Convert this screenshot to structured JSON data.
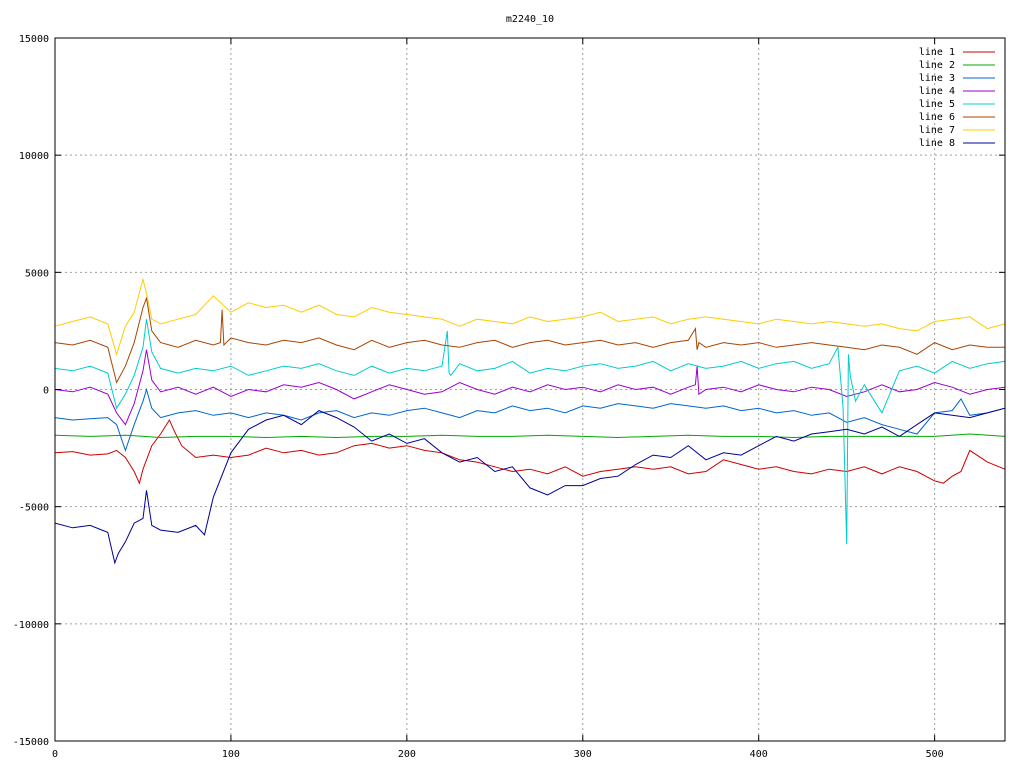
{
  "chart_data": {
    "type": "line",
    "title": "m2240_10",
    "xlim": [
      0,
      540
    ],
    "ylim": [
      -15000,
      15000
    ],
    "x_ticks": [
      0,
      100,
      200,
      300,
      400,
      500
    ],
    "y_ticks": [
      -15000,
      -10000,
      -5000,
      0,
      5000,
      10000,
      15000
    ],
    "grid": true,
    "legend_position": "top-right",
    "series": [
      {
        "name": "line 1",
        "color": "#cc0000",
        "x": [
          0,
          10,
          20,
          30,
          35,
          40,
          45,
          48,
          50,
          55,
          60,
          65,
          68,
          72,
          80,
          90,
          100,
          110,
          120,
          130,
          140,
          150,
          160,
          170,
          180,
          190,
          200,
          210,
          220,
          230,
          240,
          250,
          260,
          270,
          280,
          290,
          300,
          310,
          320,
          330,
          340,
          350,
          360,
          370,
          380,
          390,
          400,
          410,
          420,
          430,
          440,
          450,
          460,
          470,
          480,
          490,
          500,
          505,
          510,
          515,
          520,
          530,
          540
        ],
        "y": [
          -2700,
          -2650,
          -2800,
          -2750,
          -2600,
          -2900,
          -3500,
          -4000,
          -3400,
          -2400,
          -1900,
          -1300,
          -1800,
          -2400,
          -2900,
          -2800,
          -2900,
          -2800,
          -2500,
          -2700,
          -2600,
          -2800,
          -2700,
          -2400,
          -2300,
          -2500,
          -2400,
          -2600,
          -2700,
          -3000,
          -3100,
          -3300,
          -3500,
          -3400,
          -3600,
          -3300,
          -3700,
          -3500,
          -3400,
          -3300,
          -3400,
          -3300,
          -3600,
          -3500,
          -3000,
          -3200,
          -3400,
          -3300,
          -3500,
          -3600,
          -3400,
          -3500,
          -3300,
          -3600,
          -3300,
          -3500,
          -3900,
          -4000,
          -3700,
          -3500,
          -2600,
          -3100,
          -3400
        ]
      },
      {
        "name": "line 2",
        "color": "#00aa00",
        "x": [
          0,
          20,
          40,
          60,
          80,
          100,
          120,
          140,
          160,
          180,
          200,
          220,
          240,
          260,
          280,
          300,
          320,
          340,
          360,
          380,
          400,
          420,
          440,
          460,
          480,
          500,
          520,
          540
        ],
        "y": [
          -1950,
          -2000,
          -1950,
          -2050,
          -2000,
          -2000,
          -2050,
          -2000,
          -2050,
          -2000,
          -2000,
          -1950,
          -2000,
          -2000,
          -1950,
          -2000,
          -2050,
          -2000,
          -1950,
          -2000,
          -2000,
          -2050,
          -2000,
          -2000,
          -2000,
          -2000,
          -1900,
          -2000
        ]
      },
      {
        "name": "line 3",
        "color": "#0066cc",
        "x": [
          0,
          10,
          20,
          30,
          35,
          40,
          45,
          50,
          52,
          55,
          60,
          70,
          80,
          90,
          100,
          110,
          120,
          130,
          140,
          150,
          160,
          170,
          180,
          190,
          200,
          210,
          220,
          230,
          240,
          250,
          260,
          270,
          280,
          290,
          300,
          310,
          320,
          330,
          340,
          350,
          360,
          370,
          380,
          390,
          400,
          410,
          420,
          430,
          440,
          450,
          460,
          470,
          480,
          490,
          500,
          510,
          515,
          520,
          530,
          540
        ],
        "y": [
          -1200,
          -1300,
          -1250,
          -1200,
          -1500,
          -2600,
          -1500,
          -500,
          0,
          -800,
          -1200,
          -1000,
          -900,
          -1100,
          -1000,
          -1200,
          -1000,
          -1100,
          -1300,
          -1000,
          -900,
          -1200,
          -1000,
          -1100,
          -900,
          -800,
          -1000,
          -1200,
          -900,
          -1000,
          -700,
          -900,
          -800,
          -1000,
          -700,
          -800,
          -600,
          -700,
          -800,
          -600,
          -700,
          -800,
          -700,
          -900,
          -800,
          -1000,
          -900,
          -1100,
          -1000,
          -1400,
          -1200,
          -1500,
          -1700,
          -1900,
          -1000,
          -900,
          -400,
          -1100,
          -1000,
          -800
        ]
      },
      {
        "name": "line 4",
        "color": "#9900cc",
        "x": [
          0,
          10,
          20,
          30,
          35,
          40,
          45,
          50,
          52,
          55,
          60,
          70,
          80,
          90,
          100,
          110,
          120,
          130,
          140,
          150,
          160,
          170,
          180,
          190,
          200,
          210,
          220,
          230,
          240,
          250,
          260,
          270,
          280,
          290,
          300,
          310,
          320,
          330,
          340,
          350,
          360,
          364,
          365,
          366,
          370,
          380,
          390,
          400,
          410,
          420,
          430,
          440,
          450,
          460,
          470,
          480,
          490,
          500,
          510,
          520,
          530,
          540
        ],
        "y": [
          0,
          -100,
          100,
          -200,
          -1000,
          -1500,
          -600,
          800,
          1700,
          400,
          -100,
          100,
          -200,
          100,
          -300,
          0,
          -100,
          200,
          100,
          300,
          0,
          -400,
          -100,
          200,
          0,
          -200,
          -100,
          300,
          0,
          -200,
          100,
          -100,
          200,
          0,
          100,
          -100,
          200,
          0,
          100,
          -200,
          100,
          200,
          1000,
          -200,
          0,
          100,
          -100,
          200,
          0,
          -100,
          100,
          0,
          -300,
          -100,
          200,
          -100,
          0,
          300,
          100,
          -200,
          0,
          100
        ]
      },
      {
        "name": "line 5",
        "color": "#00cccc",
        "x": [
          0,
          10,
          20,
          30,
          35,
          40,
          45,
          50,
          52,
          55,
          60,
          70,
          80,
          90,
          100,
          110,
          120,
          130,
          140,
          150,
          160,
          170,
          180,
          190,
          200,
          210,
          220,
          223,
          224,
          225,
          230,
          240,
          250,
          260,
          270,
          280,
          290,
          300,
          310,
          320,
          330,
          340,
          350,
          360,
          370,
          380,
          390,
          400,
          410,
          420,
          430,
          440,
          445,
          448,
          450,
          451,
          452,
          455,
          460,
          470,
          480,
          490,
          500,
          510,
          520,
          530,
          540
        ],
        "y": [
          900,
          800,
          1000,
          700,
          -800,
          -200,
          600,
          1800,
          3000,
          1600,
          900,
          700,
          900,
          800,
          1000,
          600,
          800,
          1000,
          900,
          1100,
          800,
          600,
          1000,
          700,
          900,
          800,
          1000,
          2500,
          700,
          600,
          1100,
          800,
          900,
          1200,
          700,
          900,
          800,
          1000,
          1100,
          900,
          1000,
          1200,
          800,
          1100,
          900,
          1000,
          1200,
          900,
          1100,
          1200,
          900,
          1100,
          1800,
          -800,
          -6600,
          1500,
          600,
          -500,
          200,
          -1000,
          800,
          1000,
          700,
          1200,
          900,
          1100,
          1200
        ]
      },
      {
        "name": "line 6",
        "color": "#aa4400",
        "x": [
          0,
          10,
          20,
          30,
          35,
          40,
          45,
          50,
          52,
          55,
          60,
          70,
          80,
          90,
          94,
          95,
          96,
          100,
          110,
          120,
          130,
          140,
          150,
          160,
          170,
          180,
          190,
          200,
          210,
          220,
          230,
          240,
          250,
          260,
          270,
          280,
          290,
          300,
          310,
          320,
          330,
          340,
          350,
          360,
          364,
          365,
          366,
          370,
          380,
          390,
          400,
          410,
          420,
          430,
          440,
          450,
          460,
          470,
          480,
          490,
          500,
          510,
          520,
          530,
          540
        ],
        "y": [
          2000,
          1900,
          2100,
          1800,
          300,
          1000,
          2000,
          3500,
          3900,
          2500,
          2000,
          1800,
          2100,
          1900,
          2000,
          3400,
          1900,
          2200,
          2000,
          1900,
          2100,
          2000,
          2200,
          1900,
          1700,
          2100,
          1800,
          2000,
          2100,
          1900,
          1800,
          2000,
          2100,
          1800,
          2000,
          2100,
          1900,
          2000,
          2100,
          1900,
          2000,
          1800,
          2000,
          2100,
          2600,
          1700,
          2000,
          1800,
          2000,
          1900,
          2000,
          1800,
          1900,
          2000,
          1900,
          1800,
          1700,
          1900,
          1800,
          1500,
          2000,
          1700,
          1900,
          1800,
          1800
        ]
      },
      {
        "name": "line 7",
        "color": "#ffcc00",
        "x": [
          0,
          10,
          20,
          30,
          35,
          40,
          45,
          50,
          52,
          55,
          60,
          70,
          80,
          90,
          100,
          110,
          120,
          130,
          140,
          150,
          160,
          170,
          180,
          190,
          200,
          210,
          220,
          230,
          240,
          250,
          260,
          270,
          280,
          290,
          300,
          310,
          320,
          330,
          340,
          350,
          360,
          370,
          380,
          390,
          400,
          410,
          420,
          430,
          440,
          450,
          460,
          470,
          480,
          490,
          500,
          510,
          520,
          530,
          540
        ],
        "y": [
          2700,
          2900,
          3100,
          2800,
          1500,
          2700,
          3300,
          4700,
          4100,
          3000,
          2800,
          3000,
          3200,
          4000,
          3300,
          3700,
          3500,
          3600,
          3300,
          3600,
          3200,
          3100,
          3500,
          3300,
          3200,
          3100,
          3000,
          2700,
          3000,
          2900,
          2800,
          3100,
          2900,
          3000,
          3100,
          3300,
          2900,
          3000,
          3100,
          2800,
          3000,
          3100,
          3000,
          2900,
          2800,
          3000,
          2900,
          2800,
          2900,
          2800,
          2700,
          2800,
          2600,
          2500,
          2900,
          3000,
          3100,
          2600,
          2800
        ]
      },
      {
        "name": "line 8",
        "color": "#000099",
        "x": [
          0,
          10,
          20,
          30,
          34,
          36,
          40,
          45,
          50,
          52,
          55,
          60,
          70,
          80,
          85,
          90,
          100,
          110,
          120,
          130,
          140,
          150,
          160,
          170,
          180,
          190,
          200,
          210,
          220,
          230,
          240,
          250,
          260,
          270,
          280,
          290,
          300,
          310,
          320,
          330,
          340,
          350,
          360,
          370,
          380,
          390,
          400,
          410,
          420,
          430,
          440,
          450,
          460,
          470,
          480,
          490,
          500,
          510,
          520,
          530,
          540
        ],
        "y": [
          -5700,
          -5900,
          -5800,
          -6100,
          -7400,
          -7000,
          -6500,
          -5700,
          -5500,
          -4300,
          -5800,
          -6000,
          -6100,
          -5800,
          -6200,
          -4600,
          -2700,
          -1700,
          -1300,
          -1100,
          -1500,
          -900,
          -1200,
          -1600,
          -2200,
          -1900,
          -2300,
          -2100,
          -2700,
          -3100,
          -2900,
          -3500,
          -3300,
          -4200,
          -4500,
          -4100,
          -4100,
          -3800,
          -3700,
          -3200,
          -2800,
          -2900,
          -2400,
          -3000,
          -2700,
          -2800,
          -2400,
          -2000,
          -2200,
          -1900,
          -1800,
          -1700,
          -1900,
          -1600,
          -2000,
          -1500,
          -1000,
          -1100,
          -1200,
          -1000,
          -800
        ]
      }
    ]
  }
}
